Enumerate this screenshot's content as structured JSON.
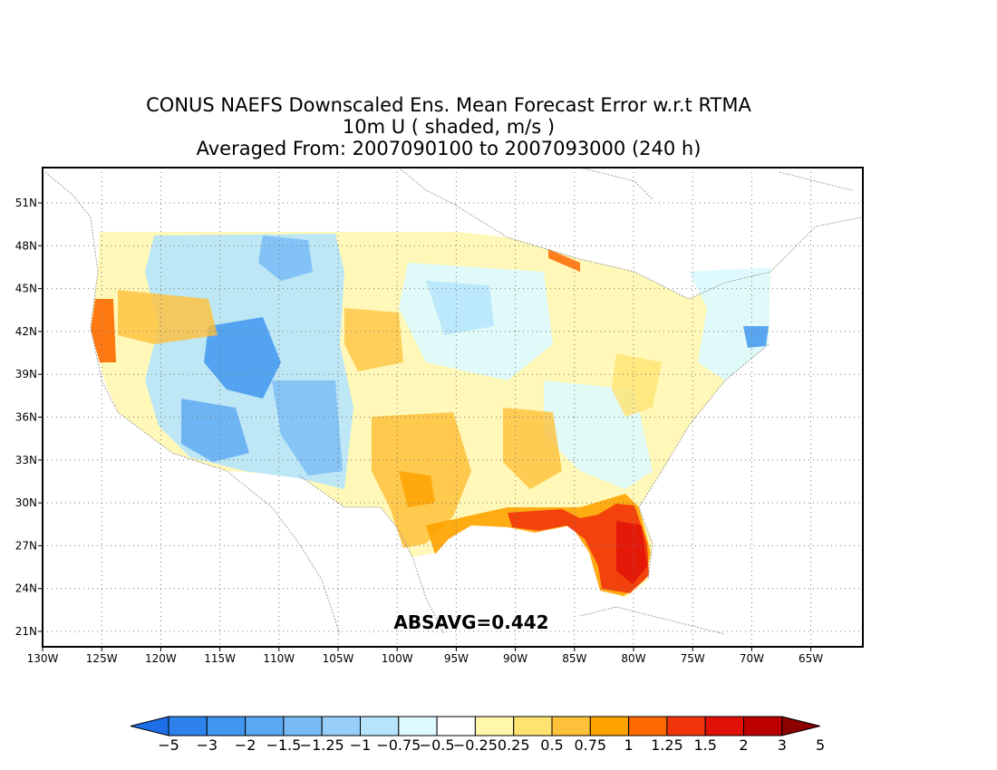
{
  "title": {
    "line1": "CONUS NAEFS Downscaled Ens. Mean Forecast Error w.r.t RTMA",
    "line2": "10m U ( shaded, m/s )",
    "line3": "Averaged From: 2007090100 to 2007093000 (240 h)"
  },
  "annotation": "ABSAVG=0.442",
  "axes": {
    "lon_labels": [
      "130W",
      "125W",
      "120W",
      "115W",
      "110W",
      "105W",
      "100W",
      "95W",
      "90W",
      "85W",
      "80W",
      "75W",
      "70W",
      "65W"
    ],
    "lat_labels": [
      "51N",
      "48N",
      "45N",
      "42N",
      "39N",
      "36N",
      "33N",
      "30N",
      "27N",
      "24N",
      "21N"
    ]
  },
  "colorbar": {
    "labels": [
      "−5",
      "−3",
      "−2",
      "−1.5",
      "−1.25",
      "−1",
      "−0.75",
      "−0.5",
      "−0.25",
      "0.25",
      "0.5",
      "0.75",
      "1",
      "1.25",
      "1.5",
      "2",
      "3",
      "5"
    ],
    "colors": [
      "#1e6ee8",
      "#2e82ec",
      "#4196f0",
      "#5aa8f2",
      "#78bbf6",
      "#98cefa",
      "#b6e4fc",
      "#dcfaff",
      "#ffffff",
      "#fff7ac",
      "#ffe370",
      "#ffc13a",
      "#ffa200",
      "#ff6a00",
      "#f2360c",
      "#e01208",
      "#bc0000",
      "#8c0000"
    ]
  },
  "colors": {
    "land": "#ffffff",
    "grid": "#777777",
    "coast": "#8a8a8a"
  }
}
